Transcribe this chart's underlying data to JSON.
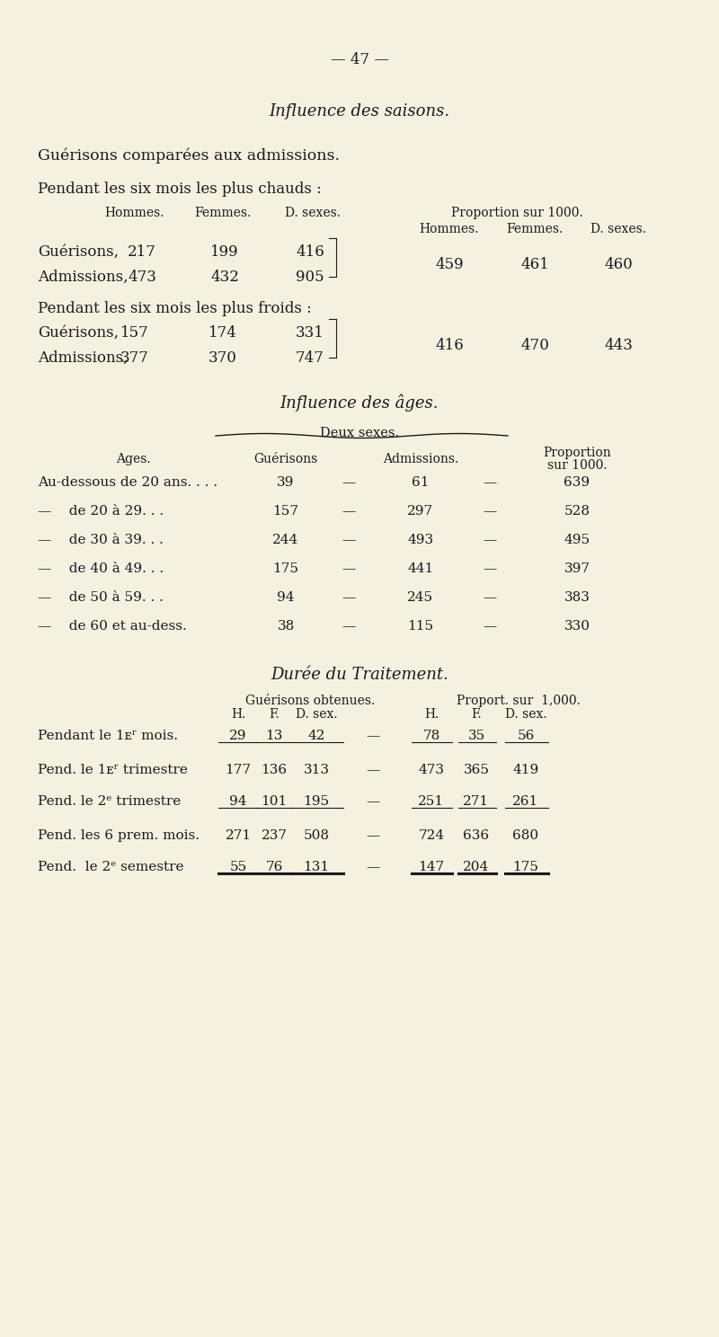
{
  "bg_color": "#f4f1e0",
  "text_color": "#1a1a1a",
  "page_number": "— 47 —",
  "title1": "Influence des saisons.",
  "section1_header": "Guérisons comparées aux admissions.",
  "section1_sub": "Pendant les six mois les plus chauds :",
  "chauds_guerisons": [
    "Guérisons,",
    "217",
    "199",
    "416"
  ],
  "chauds_admissions": [
    "Admissions,",
    "473",
    "432",
    "905"
  ],
  "chauds_proportion": [
    "459",
    "461",
    "460"
  ],
  "section2_sub": "Pendant les six mois les plus froids :",
  "froids_guerisons": [
    "Guérisons,",
    "157",
    "174",
    "331"
  ],
  "froids_admissions": [
    "Admissions,",
    "377",
    "370",
    "747"
  ],
  "froids_proportion": [
    "416",
    "470",
    "443"
  ],
  "title2": "Influence des âges.",
  "deux_sexes": "Deux sexes.",
  "ages_rows": [
    [
      "Au-dessous de 20 ans. . . .",
      "39",
      "61",
      "639"
    ],
    [
      "—    de 20 à 29. . .",
      "157",
      "297",
      "528"
    ],
    [
      "—    de 30 à 39. . .",
      "244",
      "493",
      "495"
    ],
    [
      "—    de 40 à 49. . .",
      "175",
      "441",
      "397"
    ],
    [
      "—    de 50 à 59. . .",
      "94",
      "245",
      "383"
    ],
    [
      "—    de 60 et au-dess.",
      "38",
      "115",
      "330"
    ]
  ],
  "title3": "Durée du Traitement.",
  "duree_rows": [
    [
      "Pendant le 1er mois.",
      "29",
      "13",
      "42",
      "78",
      "35",
      "56"
    ],
    [
      "Pend. le 1er trimestre",
      "177",
      "136",
      "313",
      "473",
      "365",
      "419"
    ],
    [
      "Pend. le 2e trimestre",
      "94",
      "101",
      "195",
      "251",
      "271",
      "261"
    ],
    [
      "Pend. les 6 prem. mois.",
      "271",
      "237",
      "508",
      "724",
      "636",
      "680"
    ],
    [
      "Pend.  le 2e semestre",
      "55",
      "76",
      "131",
      "147",
      "204",
      "175"
    ]
  ],
  "duree_row_labels_display": [
    "Pendant le 1ᴇʳ mois.",
    "Pend. le 1ᴇʳ trimestre",
    "Pend. le 2ᵉ trimestre",
    "Pend. les 6 prem. mois.",
    "Pend.  le 2ᵉ semestre"
  ]
}
